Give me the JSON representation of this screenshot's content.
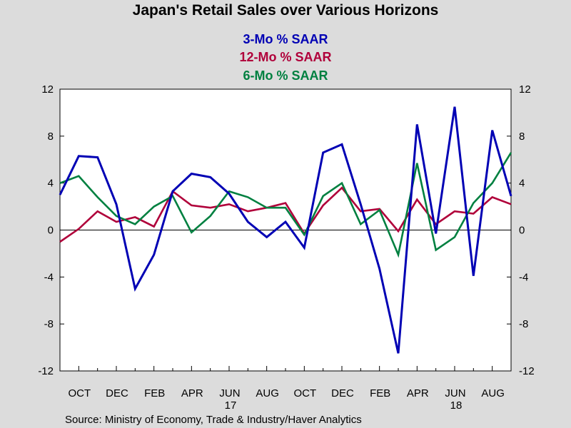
{
  "chart_data": {
    "type": "line",
    "title": "Japan's Retail Sales over Various Horizons",
    "source": "Source:  Ministry of Economy, Trade & Industry/Haver Analytics",
    "ylim": [
      -12,
      12
    ],
    "y_ticks": [
      "12",
      "8",
      "4",
      "0",
      "-4",
      "-8",
      "-12"
    ],
    "x_tick_labels": [
      "OCT",
      "DEC",
      "FEB",
      "APR",
      "JUN",
      "AUG",
      "OCT",
      "DEC",
      "FEB",
      "APR",
      "JUN",
      "AUG"
    ],
    "year_labels": [
      "17",
      "18"
    ],
    "x": [
      "2016-09",
      "2016-10",
      "2016-11",
      "2016-12",
      "2017-01",
      "2017-02",
      "2017-03",
      "2017-04",
      "2017-05",
      "2017-06",
      "2017-07",
      "2017-08",
      "2017-09",
      "2017-10",
      "2017-11",
      "2017-12",
      "2018-01",
      "2018-02",
      "2018-03",
      "2018-04",
      "2018-05",
      "2018-06",
      "2018-07",
      "2018-08",
      "2018-09"
    ],
    "grid": false,
    "legend_position": "top-center",
    "series": [
      {
        "name": "3-Mo % SAAR",
        "color": "#0000b4",
        "values": [
          3.0,
          6.3,
          6.2,
          2.2,
          -5.0,
          -2.1,
          3.3,
          4.8,
          4.5,
          3.1,
          0.7,
          -0.6,
          0.7,
          -1.5,
          6.6,
          7.3,
          2.2,
          -3.3,
          -10.5,
          9.0,
          -0.3,
          10.5,
          -3.9,
          8.5,
          2.9
        ]
      },
      {
        "name": "12-Mo % SAAR",
        "color": "#b0003a",
        "values": [
          -1.0,
          0.1,
          1.6,
          0.7,
          1.1,
          0.3,
          3.3,
          2.1,
          1.9,
          2.2,
          1.6,
          1.9,
          2.3,
          -0.3,
          2.1,
          3.6,
          1.6,
          1.8,
          -0.1,
          2.6,
          0.5,
          1.6,
          1.4,
          2.8,
          2.2
        ]
      },
      {
        "name": "6-Mo % SAAR",
        "color": "#008040",
        "values": [
          4.0,
          4.6,
          2.8,
          1.2,
          0.5,
          2.0,
          2.9,
          -0.2,
          1.2,
          3.3,
          2.8,
          1.9,
          1.9,
          -0.4,
          2.9,
          4.0,
          0.5,
          1.7,
          -2.1,
          5.7,
          -1.7,
          -0.6,
          2.3,
          4.0,
          6.6
        ]
      }
    ]
  }
}
